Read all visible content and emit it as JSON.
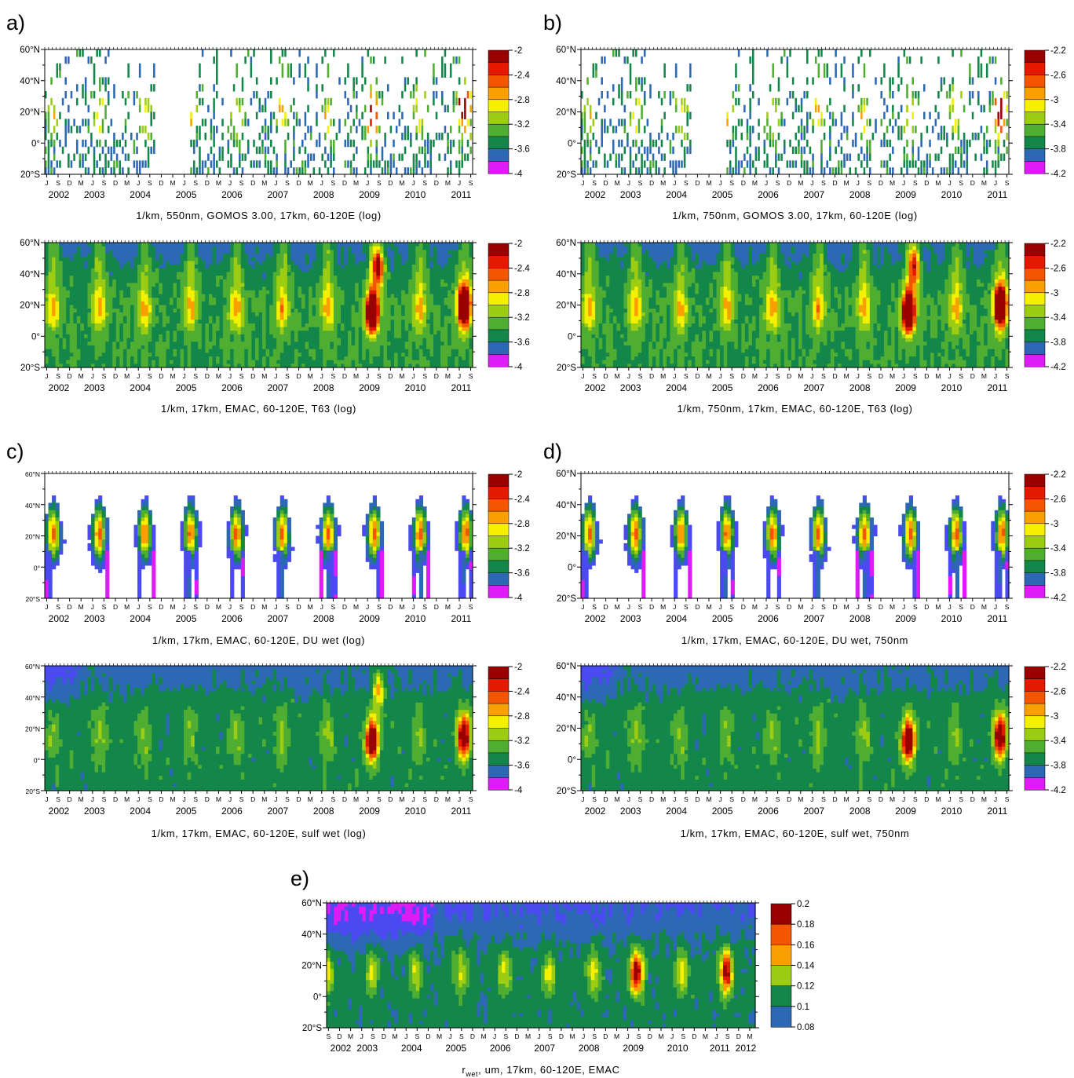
{
  "figure": {
    "panel_letters": [
      "a)",
      "b)",
      "c)",
      "d)",
      "e)"
    ],
    "lat_labels": [
      "60°N",
      "40°N",
      "20°N",
      "0°",
      "20°S"
    ],
    "month_cycle": [
      "J",
      "S",
      "D",
      "M"
    ],
    "years_2002_2011": [
      "2002",
      "2003",
      "2004",
      "2005",
      "2006",
      "2007",
      "2008",
      "2009",
      "2010",
      "2011"
    ],
    "years_e": [
      "2002",
      "2003",
      "2004",
      "2005",
      "2006",
      "2007",
      "2008",
      "2009",
      "2010",
      "2011",
      "2012"
    ],
    "palette": [
      "#dd1cf5",
      "#4a4af0",
      "#2d68b4",
      "#13874a",
      "#4fae32",
      "#9ccd12",
      "#f4f000",
      "#f9a000",
      "#f45500",
      "#e51800",
      "#990000"
    ]
  },
  "chart_data": [
    {
      "id": "a_top",
      "type": "heatmap",
      "title": "1/km, 550nm, GOMOS 3.00, 17km, 60-120E (log)",
      "xlabel": "",
      "ylabel": "",
      "x_range": [
        "2002-06",
        "2011-09"
      ],
      "ylim": [
        -20,
        60
      ],
      "colorbar": [
        "-2",
        "-2.4",
        "-2.8",
        "-3.2",
        "-3.6",
        "-4"
      ],
      "pattern": "sparse",
      "gap": [
        "2004-11",
        "2005-08"
      ],
      "peaks": [
        {
          "t": 2009.55,
          "lat": 20,
          "v": 0.55
        },
        {
          "t": 2011.55,
          "lat": 25,
          "v": 0.7
        }
      ]
    },
    {
      "id": "b_top",
      "type": "heatmap",
      "title": "1/km, 750nm, GOMOS 3.00, 17km, 60-120E (log)",
      "xlabel": "",
      "ylabel": "",
      "x_range": [
        "2002-06",
        "2011-09"
      ],
      "ylim": [
        -20,
        60
      ],
      "colorbar": [
        "-2.2",
        "-2.6",
        "-3",
        "-3.4",
        "-3.8",
        "-4.2"
      ],
      "pattern": "sparse",
      "gap": [
        "2004-11",
        "2005-08"
      ],
      "peaks": [
        {
          "t": 2011.55,
          "lat": 20,
          "v": 0.6
        }
      ]
    },
    {
      "id": "a_bottom",
      "type": "heatmap",
      "title": "1/km, 17km, EMAC, 60-120E, T63 (log)",
      "xlabel": "",
      "ylabel": "",
      "x_range": [
        "2002-06",
        "2011-09"
      ],
      "ylim": [
        -20,
        60
      ],
      "colorbar": [
        "-2",
        "-2.4",
        "-2.8",
        "-3.2",
        "-3.6",
        "-4"
      ],
      "pattern": "full",
      "peaks": [
        {
          "t": 2009.55,
          "lat": 15,
          "v": 0.85
        },
        {
          "t": 2009.7,
          "lat": 45,
          "v": 0.6
        },
        {
          "t": 2011.55,
          "lat": 20,
          "v": 0.85
        }
      ]
    },
    {
      "id": "b_bottom",
      "type": "heatmap",
      "title": "1/km, 750nm, 17km, EMAC, 60-120E, T63 (log)",
      "xlabel": "",
      "ylabel": "",
      "x_range": [
        "2002-06",
        "2011-09"
      ],
      "ylim": [
        -20,
        60
      ],
      "colorbar": [
        "-2.2",
        "-2.6",
        "-3",
        "-3.4",
        "-3.8",
        "-4.2"
      ],
      "pattern": "full",
      "peaks": [
        {
          "t": 2009.55,
          "lat": 15,
          "v": 0.85
        },
        {
          "t": 2009.7,
          "lat": 45,
          "v": 0.5
        },
        {
          "t": 2011.55,
          "lat": 20,
          "v": 0.85
        }
      ]
    },
    {
      "id": "c_top",
      "type": "heatmap",
      "title": "1/km, 17km, EMAC, 60-120E, DU wet (log)",
      "xlabel": "",
      "ylabel": "",
      "x_range": [
        "2002-06",
        "2011-09"
      ],
      "ylim": [
        -20,
        60
      ],
      "colorbar": [
        "-2",
        "-2.4",
        "-2.8",
        "-3.2",
        "-3.6",
        "-4"
      ],
      "pattern": "plumes"
    },
    {
      "id": "d_top",
      "type": "heatmap",
      "title": "1/km, 17km, EMAC, 60-120E, DU wet, 750nm",
      "xlabel": "",
      "ylabel": "",
      "x_range": [
        "2002-06",
        "2011-09"
      ],
      "ylim": [
        -20,
        60
      ],
      "colorbar": [
        "-2.2",
        "-2.6",
        "-3",
        "-3.4",
        "-3.8",
        "-4.2"
      ],
      "pattern": "plumes"
    },
    {
      "id": "c_bottom",
      "type": "heatmap",
      "title": "1/km, 17km, EMAC, 60-120E, sulf wet (log)",
      "xlabel": "",
      "ylabel": "",
      "x_range": [
        "2002-06",
        "2011-09"
      ],
      "ylim": [
        -20,
        60
      ],
      "colorbar": [
        "-2",
        "-2.4",
        "-2.8",
        "-3.2",
        "-3.6",
        "-4"
      ],
      "pattern": "sulf",
      "peaks": [
        {
          "t": 2009.55,
          "lat": 12,
          "v": 0.8
        },
        {
          "t": 2009.7,
          "lat": 45,
          "v": 0.4
        },
        {
          "t": 2011.55,
          "lat": 15,
          "v": 0.7
        }
      ]
    },
    {
      "id": "d_bottom",
      "type": "heatmap",
      "title": "1/km, 17km, EMAC, 60-120E, sulf wet, 750nm",
      "xlabel": "",
      "ylabel": "",
      "x_range": [
        "2002-06",
        "2011-09"
      ],
      "ylim": [
        -20,
        60
      ],
      "colorbar": [
        "-2.2",
        "-2.6",
        "-3",
        "-3.4",
        "-3.8",
        "-4.2"
      ],
      "pattern": "sulf",
      "peaks": [
        {
          "t": 2009.55,
          "lat": 12,
          "v": 0.8
        },
        {
          "t": 2011.55,
          "lat": 15,
          "v": 0.7
        }
      ]
    },
    {
      "id": "e",
      "type": "heatmap",
      "title": "r_wet, um, 17km,  60-120E, EMAC",
      "title_parts": {
        "main": "r",
        "sub": "wet",
        "rest": ", um, 17km,  60-120E, EMAC"
      },
      "xlabel": "",
      "ylabel": "",
      "x_range": [
        "2002-08",
        "2012-03"
      ],
      "ylim": [
        -20,
        60
      ],
      "colorbar": [
        "0.2",
        "0.18",
        "0.16",
        "0.14",
        "0.12",
        "0.1",
        "0.08"
      ],
      "pattern": "radius",
      "peaks": [
        {
          "t": 2009.55,
          "lat": 15,
          "v": 0.5
        },
        {
          "t": 2011.6,
          "lat": 15,
          "v": 0.4
        }
      ]
    }
  ]
}
